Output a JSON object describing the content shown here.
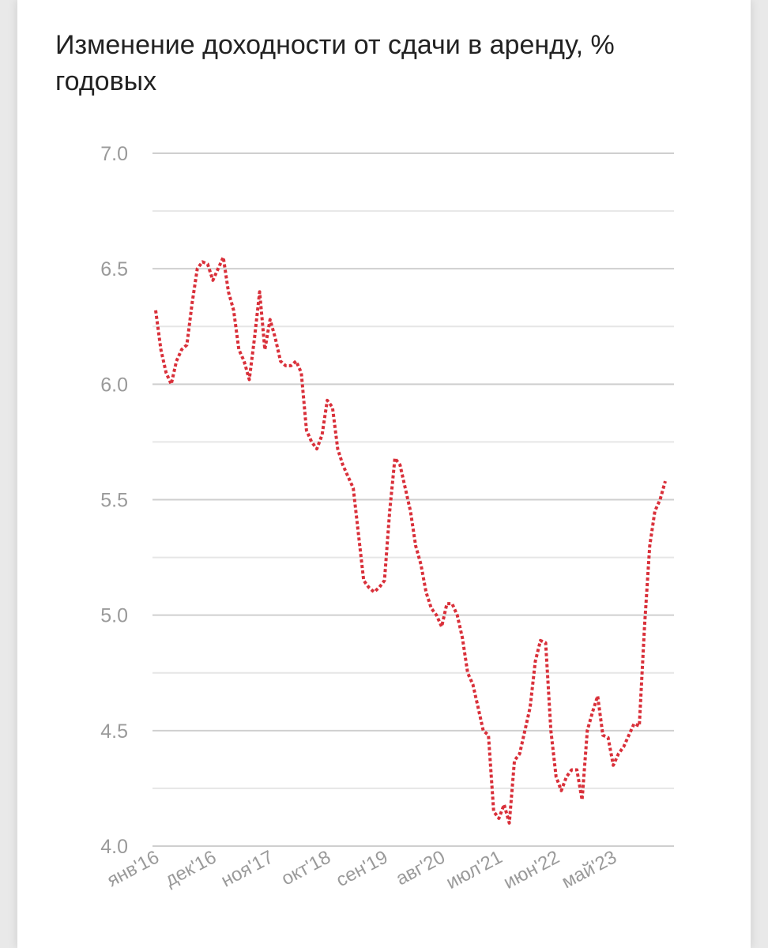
{
  "chart_data": {
    "type": "line",
    "title": "Изменение доходности от сдачи в аренду, % годовых",
    "categories": [
      "янв'16",
      null,
      null,
      null,
      null,
      null,
      null,
      null,
      null,
      null,
      null,
      "дек'16",
      null,
      null,
      null,
      null,
      null,
      null,
      null,
      null,
      null,
      null,
      "ноя'17",
      null,
      null,
      null,
      null,
      null,
      null,
      null,
      null,
      null,
      null,
      "окт'18",
      null,
      null,
      null,
      null,
      null,
      null,
      null,
      null,
      null,
      null,
      "сен'19",
      null,
      null,
      null,
      null,
      null,
      null,
      null,
      null,
      null,
      null,
      "авг'20",
      null,
      null,
      null,
      null,
      null,
      null,
      null,
      null,
      null,
      null,
      "июл'21",
      null,
      null,
      null,
      null,
      null,
      null,
      null,
      null,
      null,
      null,
      "июн'22",
      null,
      null,
      null,
      null,
      null,
      null,
      null,
      null,
      null,
      null,
      "май'23",
      null,
      null,
      null,
      null,
      null,
      null,
      null,
      null,
      null,
      null
    ],
    "series": [
      {
        "color": "#d9303a",
        "values": [
          6.32,
          6.15,
          6.05,
          6.0,
          6.1,
          6.15,
          6.17,
          6.35,
          6.5,
          6.53,
          6.52,
          6.45,
          6.5,
          6.55,
          6.4,
          6.32,
          6.15,
          6.1,
          6.02,
          6.2,
          6.4,
          6.15,
          6.28,
          6.2,
          6.1,
          6.08,
          6.08,
          6.1,
          6.05,
          5.8,
          5.75,
          5.72,
          5.78,
          5.93,
          5.9,
          5.72,
          5.65,
          5.6,
          5.55,
          5.35,
          5.15,
          5.12,
          5.1,
          5.12,
          5.15,
          5.45,
          5.68,
          5.65,
          5.55,
          5.45,
          5.3,
          5.22,
          5.1,
          5.03,
          5.0,
          4.95,
          5.05,
          5.05,
          5.0,
          4.9,
          4.75,
          4.7,
          4.6,
          4.5,
          4.48,
          4.15,
          4.12,
          4.18,
          4.1,
          4.37,
          4.4,
          4.5,
          4.6,
          4.8,
          4.89,
          4.88,
          4.5,
          4.3,
          4.24,
          4.3,
          4.33,
          4.33,
          4.2,
          4.5,
          4.58,
          4.65,
          4.48,
          4.47,
          4.35,
          4.4,
          4.43,
          4.48,
          4.53,
          4.52,
          4.95,
          5.3,
          5.45,
          5.5,
          5.58
        ]
      }
    ],
    "ylim": [
      4,
      7
    ],
    "yticks": [
      {
        "value": 4,
        "label": "4.0"
      },
      {
        "value": 4.5,
        "label": "4.5"
      },
      {
        "value": 5,
        "label": "5.0"
      },
      {
        "value": 5.5,
        "label": "5.5"
      },
      {
        "value": 6,
        "label": "6.0"
      },
      {
        "value": 6.5,
        "label": "6.5"
      },
      {
        "value": 7,
        "label": "7.0"
      }
    ],
    "minor_yticks": [
      4.25,
      4.75,
      5.25,
      5.75,
      6.25,
      6.75
    ],
    "grid": true,
    "line_style": "dotted"
  }
}
